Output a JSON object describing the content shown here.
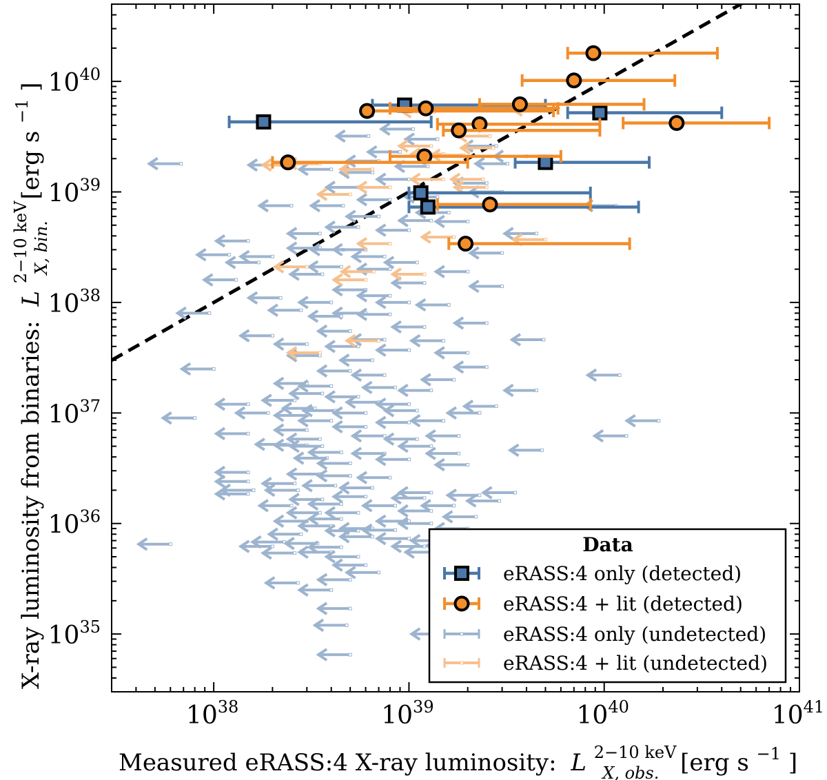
{
  "chart_data": {
    "type": "scatter",
    "xlabel": "Measured eRASS:4 X-ray luminosity: L_{X, obs.}^{2-10 keV} [erg s^{-1}]",
    "ylabel": "X-ray luminosity from binaries: L_{X, bin.}^{2-10 keV} [erg s^{-1}]",
    "x_scale": "log",
    "y_scale": "log",
    "xlim": [
      3e+37,
      1e+41
    ],
    "ylim": [
      3e+34,
      5e+40
    ],
    "x_tick_labels": [
      "10^38",
      "10^39",
      "10^40",
      "10^41"
    ],
    "y_tick_labels": [
      "10^35",
      "10^36",
      "10^37",
      "10^38",
      "10^39",
      "10^40"
    ],
    "x_label_parts": {
      "text": "Measured eRASS:4 X-ray luminosity:",
      "symbol": "L",
      "sub": "X, obs.",
      "sup": "2−10 keV",
      "unit": "[erg s",
      "unit_exp": "−1",
      "unit_close": "]"
    },
    "y_label_parts": {
      "text": "X-ray luminosity from binaries:",
      "symbol": "L",
      "sub": "X, bin.",
      "sup": "2−10 keV",
      "unit": "[erg s",
      "unit_exp": "−1",
      "unit_close": "]"
    },
    "reference_line": {
      "style": "dashed",
      "color": "#000000",
      "label": "1:1",
      "points": [
        [
          3e+37,
          3e+37
        ],
        [
          1e+41,
          1e+41
        ]
      ]
    },
    "colors": {
      "blue": "#4a77a8",
      "orange": "#f28e2b",
      "blue_light": "#9db4cf",
      "orange_light": "#f6c08e"
    },
    "legend": {
      "title": "Data",
      "position": "lower-right",
      "entries": [
        {
          "label": "eRASS:4 only (detected)",
          "marker": "square",
          "color": "blue"
        },
        {
          "label": "eRASS:4 + lit (detected)",
          "marker": "circle",
          "color": "orange"
        },
        {
          "label": "eRASS:4 only (undetected)",
          "marker": "upper-limit",
          "color": "blue_light"
        },
        {
          "label": "eRASS:4 + lit (undetected)",
          "marker": "upper-limit",
          "color": "orange_light"
        }
      ]
    },
    "series": [
      {
        "name": "eRASS:4 only (detected)",
        "marker": "square",
        "color": "blue",
        "points": [
          {
            "x": 1.8e+38,
            "y": 4.3e+39,
            "xerr": [
              1.2e+38,
              1.3e+39
            ]
          },
          {
            "x": 9.5e+38,
            "y": 6.1e+39,
            "xerr": [
              6.5e+38,
              5e+39
            ]
          },
          {
            "x": 9.5e+39,
            "y": 5.2e+39,
            "xerr": [
              6.5e+39,
              4e+40
            ]
          },
          {
            "x": 5e+39,
            "y": 1.85e+39,
            "xerr": [
              3.5e+39,
              1.7e+40
            ]
          },
          {
            "x": 1.15e+39,
            "y": 9.8e+38,
            "xerr": [
              1e+39,
              8.5e+39
            ]
          },
          {
            "x": 1.25e+39,
            "y": 7.3e+38,
            "xerr": [
              1e+39,
              1.5e+40
            ]
          }
        ]
      },
      {
        "name": "eRASS:4 + lit (detected)",
        "marker": "circle",
        "color": "orange",
        "points": [
          {
            "x": 8.8e+39,
            "y": 1.8e+40,
            "xerr": [
              6.5e+39,
              3.8e+40
            ]
          },
          {
            "x": 7e+39,
            "y": 1.02e+40,
            "xerr": [
              3.8e+39,
              2.3e+40
            ]
          },
          {
            "x": 6.1e+38,
            "y": 5.4e+39,
            "xerr": [
              6.5e+38,
              5.5e+39
            ]
          },
          {
            "x": 1.22e+39,
            "y": 5.7e+39,
            "xerr": [
              8e+38,
              5.8e+39
            ]
          },
          {
            "x": 3.7e+39,
            "y": 6.2e+39,
            "xerr": [
              2.3e+39,
              1.6e+40
            ]
          },
          {
            "x": 2.3e+39,
            "y": 4.1e+39,
            "xerr": [
              1.4e+39,
              9.5e+39
            ]
          },
          {
            "x": 1.8e+39,
            "y": 3.6e+39,
            "xerr": [
              1.5e+39,
              9.5e+39
            ]
          },
          {
            "x": 2.35e+40,
            "y": 4.2e+39,
            "xerr": [
              1.25e+40,
              7e+40
            ]
          },
          {
            "x": 1.2e+39,
            "y": 2.1e+39,
            "xerr": [
              8e+38,
              6e+39
            ]
          },
          {
            "x": 2.4e+38,
            "y": 1.85e+39,
            "xerr": [
              2e+38,
              2e+39
            ]
          },
          {
            "x": 2.6e+39,
            "y": 7.7e+38,
            "xerr": [
              1.4e+39,
              8.5e+39
            ]
          },
          {
            "x": 1.95e+39,
            "y": 3.4e+38,
            "xerr": [
              1.6e+39,
              1.35e+40
            ]
          }
        ]
      },
      {
        "name": "eRASS:4 only (undetected)",
        "marker": "upper-limit",
        "color": "blue_light",
        "points": [
          [
            1.05e+39,
            3.7e+39
          ],
          [
            6.2e+38,
            3.2e+39
          ],
          [
            1.4e+39,
            3e+39
          ],
          [
            2.8e+39,
            2.6e+39
          ],
          [
            9e+38,
            2.3e+39
          ],
          [
            4e+39,
            2.1e+39
          ],
          [
            7e+38,
            1.9e+39
          ],
          [
            3.2e+39,
            1.8e+39
          ],
          [
            6.8e+37,
            1.8e+39
          ],
          [
            2.2e+38,
            1.75e+39
          ],
          [
            1.25e+39,
            1.7e+39
          ],
          [
            4e+38,
            1.6e+39
          ],
          [
            6.5e+38,
            1.5e+39
          ],
          [
            1e+39,
            1.3e+39
          ],
          [
            2.5e+39,
            1.2e+39
          ],
          [
            5.5e+38,
            1.1e+39
          ],
          [
            3e+39,
            1e+39
          ],
          [
            1.4e+39,
            9e+38
          ],
          [
            8e+38,
            8.5e+38
          ],
          [
            2.5e+38,
            7.5e+38
          ],
          [
            4.6e+38,
            7.5e+38
          ],
          [
            1.15e+40,
            7.5e+38
          ],
          [
            1.6e+39,
            6.5e+38
          ],
          [
            7e+38,
            6e+38
          ],
          [
            1.3e+39,
            5.5e+38
          ],
          [
            2e+39,
            5.4e+38
          ],
          [
            5.5e+38,
            4.8e+38
          ],
          [
            1e+39,
            4.5e+38
          ],
          [
            3.5e+38,
            4.2e+38
          ],
          [
            4.5e+39,
            4.2e+38
          ],
          [
            1.5e+38,
            3.6e+38
          ],
          [
            3.5e+38,
            3.1e+38
          ],
          [
            4.6e+38,
            3e+38
          ],
          [
            6e+38,
            3e+38
          ],
          [
            1.2e+38,
            2.7e+38
          ],
          [
            2e+38,
            2.6e+38
          ],
          [
            7.5e+38,
            2.6e+38
          ],
          [
            3e+39,
            2.8e+38
          ],
          [
            1.1e+39,
            2.3e+38
          ],
          [
            1.7e+38,
            2.3e+38
          ],
          [
            4.5e+38,
            2.1e+38
          ],
          [
            8e+38,
            2e+38
          ],
          [
            2e+39,
            1.9e+38
          ],
          [
            3.6e+38,
            1.8e+38
          ],
          [
            1.3e+38,
            1.6e+38
          ],
          [
            1.2e+39,
            1.5e+38
          ],
          [
            3e+39,
            1.4e+38
          ],
          [
            6e+38,
            1.3e+38
          ],
          [
            8e+38,
            1.15e+38
          ],
          [
            2.2e+38,
            1.1e+38
          ],
          [
            4e+38,
            1e+38
          ],
          [
            1e+39,
            1e+38
          ],
          [
            1.6e+39,
            9.5e+37
          ],
          [
            2.8e+38,
            8.5e+37
          ],
          [
            9.5e+37,
            8e+37
          ],
          [
            6e+38,
            8e+37
          ],
          [
            8e+38,
            7.8e+37
          ],
          [
            4.5e+38,
            7.5e+37
          ],
          [
            2.5e+39,
            6.5e+37
          ],
          [
            1.2e+39,
            6e+37
          ],
          [
            5e+38,
            5.5e+37
          ],
          [
            2e+38,
            5e+37
          ],
          [
            7.5e+38,
            4.6e+37
          ],
          [
            1.5e+39,
            4.5e+37
          ],
          [
            4.9e+39,
            4.6e+37
          ],
          [
            3e+38,
            4.2e+37
          ],
          [
            5.5e+38,
            4e+37
          ],
          [
            1e+39,
            3.7e+37
          ],
          [
            2e+39,
            3.5e+37
          ],
          [
            3.5e+38,
            3.3e+37
          ],
          [
            6.5e+38,
            3e+37
          ],
          [
            2.5e+39,
            2.6e+37
          ],
          [
            1e+38,
            2.5e+37
          ],
          [
            5e+38,
            2.4e+37
          ],
          [
            7.5e+38,
            2.2e+37
          ],
          [
            1.7e+39,
            2e+37
          ],
          [
            1.2e+40,
            2.2e+37
          ],
          [
            3e+38,
            1.85e+37
          ],
          [
            4e+38,
            1.75e+37
          ],
          [
            8.5e+38,
            1.7e+37
          ],
          [
            1.3e+39,
            1.6e+37
          ],
          [
            4.5e+39,
            1.6e+37
          ],
          [
            3.6e+38,
            1.5e+37
          ],
          [
            5.5e+38,
            1.4e+37
          ],
          [
            2.6e+38,
            1.3e+37
          ],
          [
            7e+38,
            1.25e+37
          ],
          [
            1e+39,
            1.2e+37
          ],
          [
            2.8e+39,
            1.15e+37
          ],
          [
            1.5e+38,
            1.2e+37
          ],
          [
            3.3e+38,
            1.1e+37
          ],
          [
            4.2e+38,
            1.05e+37
          ],
          [
            6e+38,
            1e+37
          ],
          [
            1.1e+39,
            1.05e+37
          ],
          [
            2.3e+39,
            1e+37
          ],
          [
            1.9e+38,
            1e+37
          ],
          [
            8e+37,
            9e+36
          ],
          [
            3e+38,
            9.5e+36
          ],
          [
            4e+38,
            8.5e+36
          ],
          [
            1e+39,
            8.2e+36
          ],
          [
            1.5e+39,
            8.5e+36
          ],
          [
            1.9e+40,
            8.5e+36
          ],
          [
            6e+38,
            7.5e+36
          ],
          [
            3e+38,
            7e+36
          ],
          [
            1.5e+38,
            6.5e+36
          ],
          [
            7.5e+38,
            6.2e+36
          ],
          [
            1.8e+39,
            6.2e+36
          ],
          [
            1.3e+40,
            6.2e+36
          ],
          [
            3.5e+38,
            5.8e+36
          ],
          [
            1.1e+39,
            5.8e+36
          ],
          [
            2.4e+38,
            5.2e+36
          ],
          [
            3e+38,
            5.1e+36
          ],
          [
            3.6e+38,
            5e+36
          ],
          [
            1.3e+39,
            5e+36
          ],
          [
            4.8e+39,
            4.6e+36
          ],
          [
            4.5e+38,
            4.4e+36
          ],
          [
            7.5e+38,
            4.3e+36
          ],
          [
            1.8e+39,
            4.3e+36
          ],
          [
            3.8e+38,
            3.9e+36
          ],
          [
            1e+39,
            3.8e+36
          ],
          [
            5e+38,
            3.5e+36
          ],
          [
            2e+39,
            3.4e+36
          ],
          [
            1.5e+38,
            2.9e+36
          ],
          [
            3.5e+38,
            2.8e+36
          ],
          [
            5e+38,
            2.7e+36
          ],
          [
            8e+38,
            2.6e+36
          ],
          [
            1.5e+38,
            2.4e+36
          ],
          [
            2.6e+38,
            2.3e+36
          ],
          [
            4.2e+38,
            2.2e+36
          ],
          [
            6.5e+38,
            2.1e+36
          ],
          [
            1.6e+38,
            2e+36
          ],
          [
            2.7e+38,
            2e+36
          ],
          [
            1.3e+39,
            1.9e+36
          ],
          [
            3.5e+39,
            1.9e+36
          ],
          [
            1.5e+38,
            1.85e+36
          ],
          [
            2.3e+39,
            1.8e+36
          ],
          [
            6e+38,
            1.75e+36
          ],
          [
            3.6e+38,
            1.65e+36
          ],
          [
            1.2e+39,
            1.7e+36
          ],
          [
            2.9e+39,
            1.6e+36
          ],
          [
            4.5e+38,
            1.5e+36
          ],
          [
            2.5e+38,
            1.45e+36
          ],
          [
            8.5e+38,
            1.45e+36
          ],
          [
            1.7e+39,
            1.45e+36
          ],
          [
            1.3e+39,
            1.3e+36
          ],
          [
            3.5e+38,
            1.25e+36
          ],
          [
            5.5e+38,
            1.25e+36
          ],
          [
            2.2e+39,
            1.15e+36
          ],
          [
            4.5e+38,
            1.1e+36
          ],
          [
            1e+39,
            1.05e+36
          ],
          [
            3e+38,
            1.05e+36
          ],
          [
            1.3e+39,
            1e+36
          ],
          [
            6.5e+38,
            9e+35
          ],
          [
            4e+38,
            9.5e+35
          ],
          [
            5.5e+38,
            8.6e+35
          ],
          [
            8.5e+38,
            8.7e+35
          ],
          [
            2e+39,
            9e+35
          ],
          [
            2.8e+38,
            8e+35
          ],
          [
            6.5e+38,
            7.6e+35
          ],
          [
            1e+39,
            7.3e+35
          ],
          [
            1.5e+39,
            7e+35
          ],
          [
            2.3e+38,
            6.8e+35
          ],
          [
            3.4e+38,
            6.6e+35
          ],
          [
            6e+37,
            6.5e+35
          ],
          [
            1.8e+39,
            6.3e+35
          ],
          [
            1.2e+39,
            6.2e+35
          ],
          [
            2e+38,
            6.2e+35
          ],
          [
            4.5e+38,
            6.1e+35
          ],
          [
            1.4e+39,
            5.5e+35
          ],
          [
            4e+38,
            5.5e+35
          ],
          [
            2.6e+38,
            5.4e+35
          ],
          [
            5.5e+38,
            5e+35
          ],
          [
            6e+38,
            4.2e+35
          ],
          [
            7e+38,
            3.6e+35
          ],
          [
            5e+38,
            3.1e+35
          ],
          [
            2.7e+38,
            2.9e+35
          ],
          [
            4e+38,
            2.5e+35
          ],
          [
            5e+38,
            1.7e+35
          ],
          [
            4.8e+38,
            1.2e+35
          ],
          [
            1.5e+39,
            1e+35
          ],
          [
            5e+38,
            6.5e+34
          ]
        ]
      },
      {
        "name": "eRASS:4 + lit (undetected)",
        "marker": "upper-limit",
        "color": "orange_light",
        "points": [
          [
            5e+39,
            5.5e+39
          ],
          [
            1.35e+39,
            5.3e+39
          ],
          [
            2.6e+39,
            3.2e+39
          ],
          [
            1.3e+39,
            2.6e+39
          ],
          [
            2.7e+39,
            2.5e+39
          ],
          [
            1.5e+39,
            2.2e+39
          ],
          [
            1.9e+39,
            2.15e+39
          ],
          [
            2.6e+38,
            1.75e+39
          ],
          [
            3.5e+38,
            1.8e+39
          ],
          [
            6.5e+38,
            1.6e+39
          ],
          [
            2.4e+39,
            1.3e+39
          ],
          [
            2.5e+39,
            1.1e+39
          ],
          [
            8e+38,
            1.1e+39
          ],
          [
            5e+38,
            9.5e+38
          ],
          [
            1.7e+39,
            3.9e+38
          ],
          [
            5e+39,
            3.7e+38
          ],
          [
            8e+38,
            3.4e+38
          ],
          [
            6.6e+38,
            1.9e+38
          ],
          [
            1.2e+39,
            1.8e+38
          ],
          [
            3e+38,
            2.1e+38
          ],
          [
            6e+38,
            1.6e+38
          ],
          [
            7e+38,
            4.5e+37
          ],
          [
            3.5e+38,
            3.5e+37
          ],
          [
            1.5e+39,
            1.3e+39
          ]
        ]
      }
    ]
  }
}
